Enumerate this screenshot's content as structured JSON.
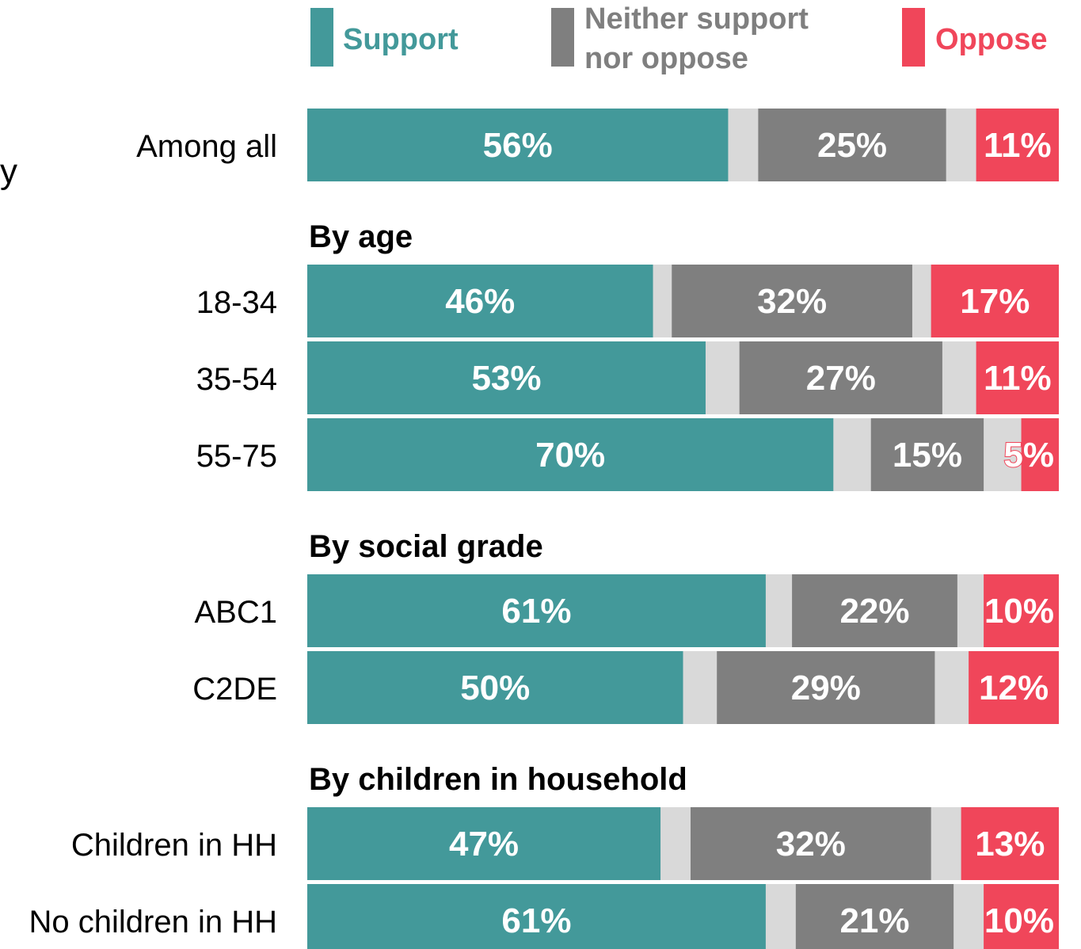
{
  "colors": {
    "support": "#43999a",
    "neither": "#7f7f7f",
    "oppose": "#f0465a",
    "other": "#d9d9d9"
  },
  "legend": {
    "support": "Support",
    "neither_line1": "Neither support",
    "neither_line2": "nor oppose",
    "oppose": "Oppose"
  },
  "stray_text": "y",
  "chart_data": {
    "type": "bar",
    "orientation": "horizontal",
    "stacked": true,
    "xlim": [
      0,
      100
    ],
    "legend_position": "top",
    "series_names": [
      "Support",
      "Neither support nor oppose",
      "Oppose"
    ],
    "groups": [
      {
        "heading": "",
        "rows": [
          {
            "label": "Among all",
            "support": 56,
            "neither": 25,
            "oppose": 11
          }
        ]
      },
      {
        "heading": "By age",
        "rows": [
          {
            "label": "18-34",
            "support": 46,
            "neither": 32,
            "oppose": 17
          },
          {
            "label": "35-54",
            "support": 53,
            "neither": 27,
            "oppose": 11
          },
          {
            "label": "55-75",
            "support": 70,
            "neither": 15,
            "oppose": 5
          }
        ]
      },
      {
        "heading": "By social grade",
        "rows": [
          {
            "label": "ABC1",
            "support": 61,
            "neither": 22,
            "oppose": 10
          },
          {
            "label": "C2DE",
            "support": 50,
            "neither": 29,
            "oppose": 12
          }
        ]
      },
      {
        "heading": "By children in household",
        "rows": [
          {
            "label": "Children in HH",
            "support": 47,
            "neither": 32,
            "oppose": 13
          },
          {
            "label": "No children in HH",
            "support": 61,
            "neither": 21,
            "oppose": 10
          }
        ]
      }
    ]
  }
}
